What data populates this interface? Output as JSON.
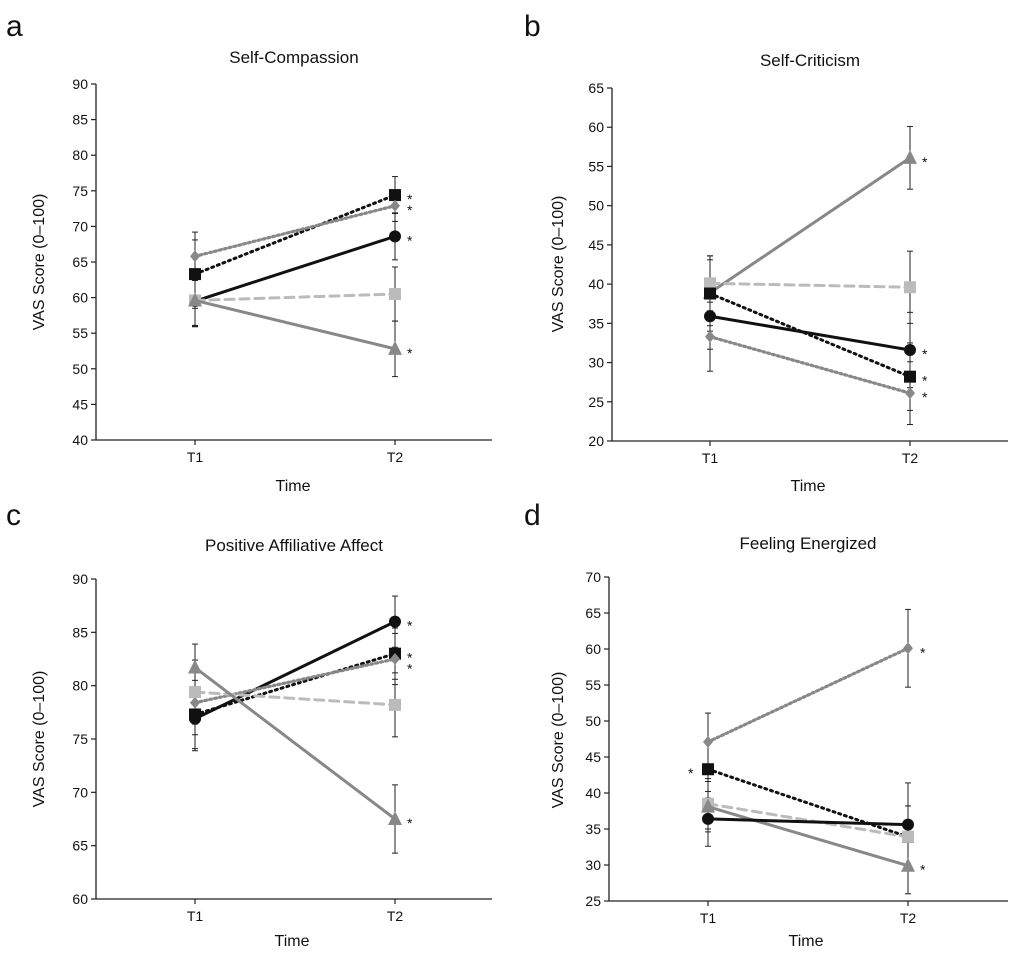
{
  "panel_letters": [
    "a",
    "b",
    "c",
    "d"
  ],
  "colors": {
    "axis": "#222222",
    "black": "#111111",
    "dark_gray": "#888888",
    "light_gray": "#bbbbbb",
    "medium_gray": "#888888"
  },
  "chart_data": [
    {
      "type": "line",
      "title": "Self-Compassion",
      "xlabel": "Time",
      "ylabel": "VAS Score (0–100)",
      "categories": [
        "T1",
        "T2"
      ],
      "ylim": [
        40,
        90
      ],
      "yticks": [
        40,
        45,
        50,
        55,
        60,
        65,
        70,
        75,
        80,
        85,
        90
      ],
      "series": [
        {
          "values": [
            63.3,
            74.4
          ],
          "marker": "square",
          "style": "dotted-black",
          "err": [
            4.8,
            2.6
          ],
          "sig": [
            false,
            true
          ]
        },
        {
          "values": [
            65.8,
            72.9
          ],
          "marker": "diamond",
          "style": "dotted-gray",
          "err": [
            3.4,
            2.2
          ],
          "sig": [
            false,
            true
          ]
        },
        {
          "values": [
            59.5,
            68.6
          ],
          "marker": "circle",
          "style": "solid-black",
          "err": [
            3.4,
            3.3
          ],
          "sig": [
            false,
            true
          ]
        },
        {
          "values": [
            59.6,
            60.5
          ],
          "marker": "square",
          "style": "dashed-light",
          "err": [
            3.6,
            3.8
          ],
          "sig": [
            false,
            false
          ]
        },
        {
          "values": [
            59.6,
            52.8
          ],
          "marker": "triangle",
          "style": "solid-gray",
          "err": [
            3.7,
            3.9
          ],
          "sig": [
            false,
            true
          ]
        }
      ]
    },
    {
      "type": "line",
      "title": "Self-Criticism",
      "xlabel": "Time",
      "ylabel": "VAS Score (0–100)",
      "categories": [
        "T1",
        "T2"
      ],
      "ylim": [
        20,
        65
      ],
      "yticks": [
        20,
        25,
        30,
        35,
        40,
        45,
        50,
        55,
        60,
        65
      ],
      "series": [
        {
          "values": [
            38.9,
            56.1
          ],
          "marker": "triangle",
          "style": "solid-gray",
          "err": [
            4.2,
            4.0
          ],
          "sig": [
            false,
            true
          ]
        },
        {
          "values": [
            40.1,
            39.6
          ],
          "marker": "square",
          "style": "dashed-light",
          "err": [
            3.5,
            4.6
          ],
          "sig": [
            false,
            false
          ]
        },
        {
          "values": [
            35.9,
            31.6
          ],
          "marker": "circle",
          "style": "solid-black",
          "err": [
            4.2,
            4.8
          ],
          "sig": [
            false,
            true
          ]
        },
        {
          "values": [
            38.8,
            28.2
          ],
          "marker": "square",
          "style": "dotted-black",
          "err": [
            4.8,
            4.3
          ],
          "sig": [
            false,
            true
          ]
        },
        {
          "values": [
            33.3,
            26.1
          ],
          "marker": "diamond",
          "style": "dotted-gray",
          "err": [
            4.4,
            4.0
          ],
          "sig": [
            false,
            true
          ]
        }
      ]
    },
    {
      "type": "line",
      "title": "Positive Affiliative Affect",
      "xlabel": "Time",
      "ylabel": "VAS Score (0–100)",
      "categories": [
        "T1",
        "T2"
      ],
      "ylim": [
        60,
        90
      ],
      "yticks": [
        60,
        65,
        70,
        75,
        80,
        85,
        90
      ],
      "series": [
        {
          "values": [
            76.9,
            86.0
          ],
          "marker": "circle",
          "style": "solid-black",
          "err": [
            3.0,
            2.4
          ],
          "sig": [
            false,
            true
          ]
        },
        {
          "values": [
            77.3,
            83.0
          ],
          "marker": "square",
          "style": "dotted-black",
          "err": [
            3.2,
            2.4
          ],
          "sig": [
            false,
            true
          ]
        },
        {
          "values": [
            78.4,
            82.5
          ],
          "marker": "diamond",
          "style": "dotted-gray",
          "err": [
            3.0,
            2.4
          ],
          "sig": [
            false,
            true
          ]
        },
        {
          "values": [
            79.4,
            78.2
          ],
          "marker": "square",
          "style": "dashed-light",
          "err": [
            3.0,
            3.0
          ],
          "sig": [
            false,
            false
          ]
        },
        {
          "values": [
            81.7,
            67.5
          ],
          "marker": "triangle",
          "style": "solid-gray",
          "err": [
            2.2,
            3.2
          ],
          "sig": [
            false,
            true
          ]
        }
      ]
    },
    {
      "type": "line",
      "title": "Feeling Energized",
      "xlabel": "Time",
      "ylabel": "VAS Score (0–100)",
      "categories": [
        "T1",
        "T2"
      ],
      "ylim": [
        25,
        70
      ],
      "yticks": [
        25,
        30,
        35,
        40,
        45,
        50,
        55,
        60,
        65,
        70
      ],
      "series": [
        {
          "values": [
            47.1,
            60.1
          ],
          "marker": "diamond",
          "style": "dotted-gray",
          "err": [
            4.0,
            5.4
          ],
          "sig": [
            false,
            true
          ]
        },
        {
          "values": [
            43.3,
            33.9
          ],
          "marker": "square",
          "style": "dotted-black",
          "err": [
            4.0,
            4.3
          ],
          "sig": [
            true,
            false
          ]
        },
        {
          "values": [
            38.5,
            33.9
          ],
          "marker": "square",
          "style": "dashed-light",
          "err": [
            3.5,
            4.3
          ],
          "sig": [
            false,
            false
          ]
        },
        {
          "values": [
            38.1,
            29.9
          ],
          "marker": "triangle",
          "style": "solid-gray",
          "err": [
            3.5,
            3.9
          ],
          "sig": [
            false,
            true
          ]
        },
        {
          "values": [
            36.4,
            35.6
          ],
          "marker": "circle",
          "style": "solid-black",
          "err": [
            3.8,
            5.8
          ],
          "sig": [
            false,
            false
          ]
        }
      ]
    }
  ]
}
